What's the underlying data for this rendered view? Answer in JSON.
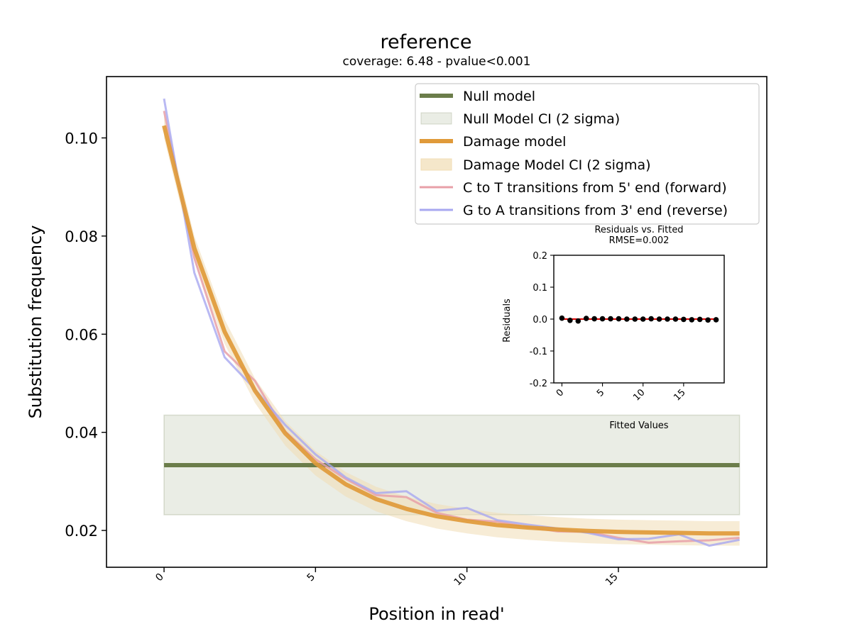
{
  "chart_data": [
    {
      "type": "line",
      "title": "reference",
      "subtitle": "coverage: 6.48 - pvalue<0.001",
      "xlabel": "Position in read'",
      "ylabel": "Substitution frequency",
      "xlim": [
        -1.9,
        19.9
      ],
      "ylim": [
        0.0125,
        0.1125
      ],
      "xticks": [
        0,
        5,
        10,
        15
      ],
      "xtick_labels": [
        "0",
        "5",
        "10",
        "15"
      ],
      "yticks": [
        0.02,
        0.04,
        0.06,
        0.08,
        0.1
      ],
      "ytick_labels": [
        "0.02",
        "0.04",
        "0.06",
        "0.08",
        "0.10"
      ],
      "grid": false,
      "legend_position": "top-right",
      "x": [
        0,
        1,
        2,
        3,
        4,
        5,
        6,
        7,
        8,
        9,
        10,
        11,
        12,
        13,
        14,
        15,
        16,
        17,
        18,
        19
      ],
      "null_band": {
        "x": [
          0,
          19
        ],
        "low": 0.0232,
        "high": 0.0435
      },
      "damage_band_width": 0.0025,
      "series": [
        {
          "name": "Null model",
          "role": "null",
          "color": "#6b7d4a",
          "values": [
            0.0333,
            0.0333,
            0.0333,
            0.0333,
            0.0333,
            0.0333,
            0.0333,
            0.0333,
            0.0333,
            0.0333,
            0.0333,
            0.0333,
            0.0333,
            0.0333,
            0.0333,
            0.0333,
            0.0333,
            0.0333,
            0.0333,
            0.0333
          ]
        },
        {
          "name": "Null Model CI (2 sigma)",
          "role": "null_ci",
          "color": "#6b7d4a"
        },
        {
          "name": "Damage model",
          "role": "damage",
          "color": "#e09a3a",
          "values": [
            0.1025,
            0.0775,
            0.0605,
            0.0485,
            0.0398,
            0.0337,
            0.0294,
            0.0264,
            0.0244,
            0.0229,
            0.0219,
            0.0211,
            0.0206,
            0.0202,
            0.0199,
            0.0197,
            0.0196,
            0.0195,
            0.0194,
            0.0194
          ]
        },
        {
          "name": "Damage Model CI (2 sigma)",
          "role": "damage_ci",
          "color": "#f1ddb4"
        },
        {
          "name": "C to T transitions from 5' end (forward)",
          "role": "ct",
          "color": "#e8a0a8",
          "values": [
            0.1055,
            0.0755,
            0.0565,
            0.0505,
            0.0402,
            0.0345,
            0.0305,
            0.0272,
            0.0268,
            0.0236,
            0.0222,
            0.0218,
            0.0207,
            0.0198,
            0.0197,
            0.0185,
            0.0175,
            0.0178,
            0.018,
            0.0185
          ]
        },
        {
          "name": "G to A transitions from 3' end (reverse)",
          "role": "ga",
          "color": "#a8a8f0",
          "values": [
            0.108,
            0.0725,
            0.0553,
            0.0488,
            0.0415,
            0.0355,
            0.0308,
            0.0276,
            0.028,
            0.024,
            0.0246,
            0.0221,
            0.0212,
            0.0204,
            0.0195,
            0.0182,
            0.0183,
            0.0192,
            0.0169,
            0.0181
          ]
        }
      ]
    },
    {
      "type": "scatter",
      "title": "Residuals vs. Fitted",
      "subtitle": "RMSE=0.002",
      "xlabel": "Fitted Values",
      "ylabel": "Residuals",
      "xlim": [
        -1,
        20
      ],
      "ylim": [
        -0.2,
        0.2
      ],
      "xticks": [
        0,
        5,
        10,
        15
      ],
      "xtick_labels": [
        "0",
        "5",
        "10",
        "15"
      ],
      "yticks": [
        -0.2,
        -0.1,
        0.0,
        0.1,
        0.2
      ],
      "ytick_labels": [
        "-0.2",
        "-0.1",
        "0.0",
        "0.1",
        "0.2"
      ],
      "x": [
        0,
        1,
        2,
        3,
        4,
        5,
        6,
        7,
        8,
        9,
        10,
        11,
        12,
        13,
        14,
        15,
        16,
        17,
        18,
        19
      ],
      "residuals": [
        0.003,
        -0.004,
        -0.006,
        0.002,
        0.001,
        0.001,
        0.001,
        0.001,
        0.0,
        0.0,
        0.0,
        0.001,
        0.0,
        0.0,
        0.0,
        -0.001,
        -0.002,
        -0.001,
        -0.003,
        -0.002
      ],
      "zero_line_color": "#dd0000",
      "point_color": "#000000"
    }
  ]
}
